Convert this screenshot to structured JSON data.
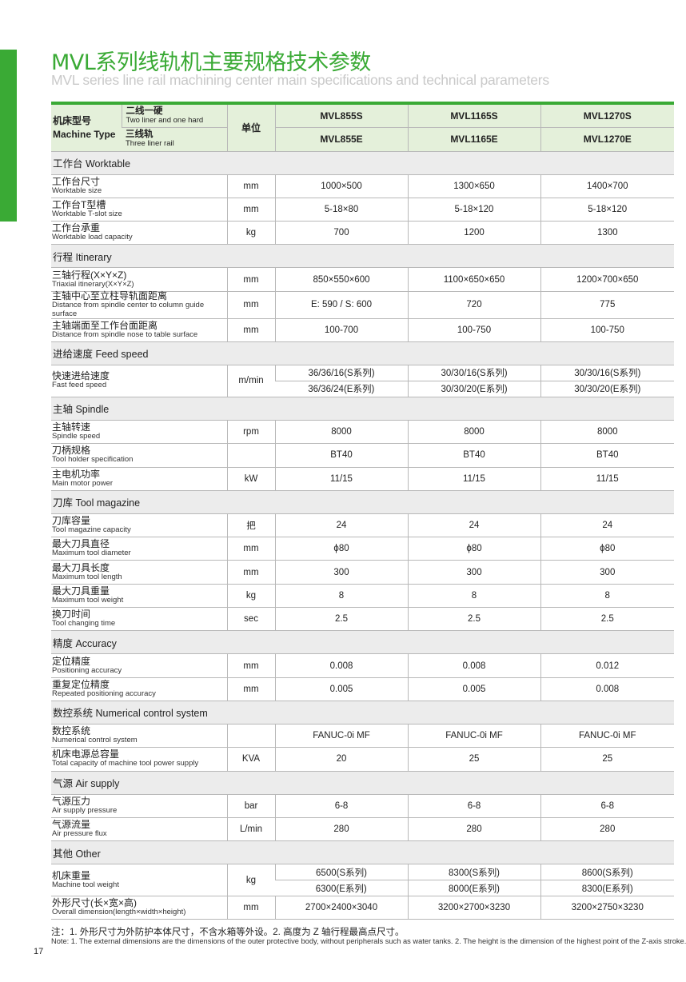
{
  "title": "MVL系列线轨机主要规格技术参数",
  "subtitle": "MVL series line rail machining center main specifications and technical parameters",
  "colors": {
    "accent": "#3aaa35",
    "header_bg": "#e4f0da",
    "section_bg": "#ececec"
  },
  "header": {
    "machine_type_cn": "机床型号",
    "machine_type_en": "Machine Type",
    "s_type_cn": "二线一硬",
    "s_type_en": "Two liner and one hard",
    "e_type_cn": "三线轨",
    "e_type_en": "Three liner rail",
    "unit": "单位",
    "models_s": [
      "MVL855S",
      "MVL1165S",
      "MVL1270S"
    ],
    "models_e": [
      "MVL855E",
      "MVL1165E",
      "MVL1270E"
    ]
  },
  "sections": [
    {
      "title": "工作台  Worktable",
      "rows": [
        {
          "cn": "工作台尺寸",
          "en": "Worktable size",
          "unit": "mm",
          "values": [
            "1000×500",
            "1300×650",
            "1400×700"
          ]
        },
        {
          "cn": "工作台T型槽",
          "en": "Worktable T-slot size",
          "unit": "mm",
          "values": [
            "5-18×80",
            "5-18×120",
            "5-18×120"
          ]
        },
        {
          "cn": "工作台承重",
          "en": "Worktable load capacity",
          "unit": "kg",
          "values": [
            "700",
            "1200",
            "1300"
          ]
        }
      ]
    },
    {
      "title": "行程  Itinerary",
      "rows": [
        {
          "cn": "三轴行程(X×Y×Z)",
          "en": "Triaxial itinerary(X×Y×Z)",
          "unit": "mm",
          "values": [
            "850×550×600",
            "1100×650×650",
            "1200×700×650"
          ]
        },
        {
          "cn": "主轴中心至立柱导轨面距离",
          "en": "Distance from spindle center to column guide surface",
          "unit": "mm",
          "values": [
            "E: 590 / S: 600",
            "720",
            "775"
          ]
        },
        {
          "cn": "主轴端面至工作台面距离",
          "en": "Distance from spindle nose to table surface",
          "unit": "mm",
          "values": [
            "100-700",
            "100-750",
            "100-750"
          ]
        }
      ]
    },
    {
      "title": "进给速度  Feed speed",
      "rows": [
        {
          "cn": "快速进给速度",
          "en": "Fast feed speed",
          "unit": "m/min",
          "values": [
            "36/36/16(S系列)",
            "30/30/16(S系列)",
            "30/30/16(S系列)"
          ],
          "values2": [
            "36/36/24(E系列)",
            "30/30/20(E系列)",
            "30/30/20(E系列)"
          ]
        }
      ]
    },
    {
      "title": "主轴  Spindle",
      "rows": [
        {
          "cn": "主轴转速",
          "en": "Spindle speed",
          "unit": "rpm",
          "values": [
            "8000",
            "8000",
            "8000"
          ]
        },
        {
          "cn": "刀柄规格",
          "en": "Tool holder specification",
          "unit": "",
          "values": [
            "BT40",
            "BT40",
            "BT40"
          ]
        },
        {
          "cn": "主电机功率",
          "en": "Main motor power",
          "unit": "kW",
          "values": [
            "11/15",
            "11/15",
            "11/15"
          ]
        }
      ]
    },
    {
      "title": "刀库  Tool magazine",
      "rows": [
        {
          "cn": "刀库容量",
          "en": "Tool magazine capacity",
          "unit": "把",
          "values": [
            "24",
            "24",
            "24"
          ]
        },
        {
          "cn": "最大刀具直径",
          "en": "Maximum tool diameter",
          "unit": "mm",
          "values": [
            "ϕ80",
            "ϕ80",
            "ϕ80"
          ]
        },
        {
          "cn": "最大刀具长度",
          "en": "Maximum tool length",
          "unit": "mm",
          "values": [
            "300",
            "300",
            "300"
          ]
        },
        {
          "cn": "最大刀具重量",
          "en": "Maximum tool weight",
          "unit": "kg",
          "values": [
            "8",
            "8",
            "8"
          ]
        },
        {
          "cn": "换刀时间",
          "en": "Tool changing time",
          "unit": "sec",
          "values": [
            "2.5",
            "2.5",
            "2.5"
          ]
        }
      ]
    },
    {
      "title": "精度  Accuracy",
      "rows": [
        {
          "cn": "定位精度",
          "en": "Positioning accuracy",
          "unit": "mm",
          "values": [
            "0.008",
            "0.008",
            "0.012"
          ]
        },
        {
          "cn": "重复定位精度",
          "en": "Repeated positioning accuracy",
          "unit": "mm",
          "values": [
            "0.005",
            "0.005",
            "0.008"
          ]
        }
      ]
    },
    {
      "title": "数控系统  Numerical control system",
      "rows": [
        {
          "cn": "数控系统",
          "en": "Numerical control system",
          "unit": "",
          "values": [
            "FANUC-0i MF",
            "FANUC-0i MF",
            "FANUC-0i MF"
          ]
        },
        {
          "cn": "机床电源总容量",
          "en": "Total capacity of machine tool power supply",
          "unit": "KVA",
          "values": [
            "20",
            "25",
            "25"
          ]
        }
      ]
    },
    {
      "title": "气源  Air supply",
      "rows": [
        {
          "cn": "气源压力",
          "en": "Air supply pressure",
          "unit": "bar",
          "values": [
            "6-8",
            "6-8",
            "6-8"
          ]
        },
        {
          "cn": "气源流量",
          "en": "Air pressure flux",
          "unit": "L/min",
          "values": [
            "280",
            "280",
            "280"
          ]
        }
      ]
    },
    {
      "title": "其他  Other",
      "rows": [
        {
          "cn": "机床重量",
          "en": "Machine tool weight",
          "unit": "kg",
          "values": [
            "6500(S系列)",
            "8300(S系列)",
            "8600(S系列)"
          ],
          "values2": [
            "6300(E系列)",
            "8000(E系列)",
            "8300(E系列)"
          ]
        },
        {
          "cn": "外形尺寸(长×宽×高)",
          "en": "Overall dimension(length×width×height)",
          "unit": "mm",
          "values": [
            "2700×2400×3040",
            "3200×2700×3230",
            "3200×2750×3230"
          ]
        }
      ]
    }
  ],
  "note_cn": "注：1. 外形尺寸为外防护本体尺寸，不含水箱等外设。2. 高度为 Z 轴行程最高点尺寸。",
  "note_en": "Note: 1. The external dimensions are the dimensions of the outer protective body, without peripherals such as water tanks. 2. The height is the dimension of the highest point of the Z-axis stroke.",
  "page_number": "17"
}
